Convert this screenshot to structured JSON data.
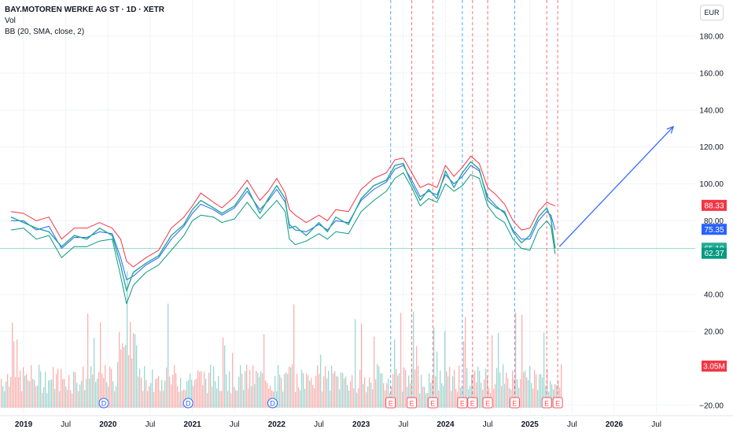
{
  "legend": {
    "title": "BAY.MOTOREN WERKE AG ST · 1D · XETR",
    "line2": "Vol",
    "line3": "BB (20, SMA, close, 2)"
  },
  "currency": "EUR",
  "colors": {
    "upper": "#f23645",
    "lower": "#089981",
    "basis": "#2962ff",
    "price": "#22ab94",
    "volUp": "#26a69a",
    "volDown": "#ef5350",
    "arrow": "#2962ff",
    "earningsLine": "#f7525f",
    "dividendLine": "#2196f3"
  },
  "chart_data": {
    "type": "line",
    "title": "BAY.MOTOREN WERKE AG ST · 1D · XETR",
    "ylim": [
      -20,
      190
    ],
    "y_ticks": [
      -20,
      20,
      40,
      80,
      100,
      120,
      140,
      160,
      180
    ],
    "x_ticks": [
      "2019",
      "Jul",
      "2020",
      "Jul",
      "2021",
      "Jul",
      "2022",
      "Jul",
      "2023",
      "Jul",
      "2024",
      "Jul",
      "2025",
      "Jul",
      "2026",
      "Jul"
    ],
    "x": [
      2018.85,
      2019.0,
      2019.15,
      2019.3,
      2019.45,
      2019.6,
      2019.75,
      2019.9,
      2020.05,
      2020.15,
      2020.22,
      2020.3,
      2020.45,
      2020.6,
      2020.75,
      2020.9,
      2021.0,
      2021.1,
      2021.25,
      2021.35,
      2021.5,
      2021.65,
      2021.8,
      2021.9,
      2022.0,
      2022.1,
      2022.15,
      2022.22,
      2022.35,
      2022.5,
      2022.6,
      2022.7,
      2022.85,
      2023.0,
      2023.15,
      2023.3,
      2023.4,
      2023.5,
      2023.6,
      2023.7,
      2023.8,
      2023.9,
      2024.0,
      2024.1,
      2024.2,
      2024.3,
      2024.4,
      2024.5,
      2024.6,
      2024.7,
      2024.8,
      2024.9,
      2025.0,
      2025.1,
      2025.2,
      2025.25,
      2025.3
    ],
    "series": [
      {
        "name": "upper",
        "values": [
          85,
          84,
          80,
          82,
          70,
          76,
          76,
          79,
          76,
          70,
          58,
          55,
          60,
          64,
          76,
          82,
          88,
          95,
          90,
          87,
          93,
          102,
          91,
          96,
          103,
          95,
          86,
          83,
          79,
          83,
          80,
          86,
          85,
          97,
          103,
          106,
          113,
          114,
          106,
          98,
          100,
          98,
          110,
          104,
          109,
          115,
          111,
          98,
          94,
          89,
          80,
          75,
          76,
          85,
          90,
          89,
          88
        ]
      },
      {
        "name": "basis",
        "values": [
          80,
          80,
          75,
          77,
          65,
          71,
          71,
          74,
          73,
          60,
          48,
          50,
          56,
          60,
          70,
          77,
          84,
          89,
          86,
          83,
          87,
          96,
          86,
          91,
          97,
          90,
          78,
          75,
          74,
          78,
          75,
          80,
          79,
          91,
          97,
          101,
          108,
          110,
          102,
          93,
          96,
          94,
          105,
          100,
          104,
          110,
          107,
          93,
          88,
          84,
          75,
          70,
          70,
          80,
          85,
          83,
          75
        ]
      },
      {
        "name": "lower",
        "values": [
          75,
          76,
          70,
          72,
          60,
          66,
          66,
          69,
          70,
          50,
          35,
          45,
          52,
          56,
          64,
          72,
          80,
          83,
          82,
          79,
          81,
          90,
          81,
          86,
          91,
          85,
          70,
          67,
          69,
          73,
          70,
          74,
          73,
          85,
          91,
          96,
          103,
          106,
          98,
          88,
          92,
          90,
          100,
          96,
          99,
          105,
          103,
          88,
          82,
          79,
          70,
          65,
          64,
          75,
          80,
          77,
          62
        ]
      },
      {
        "name": "price",
        "values": [
          82,
          79,
          76,
          74,
          66,
          72,
          70,
          76,
          72,
          56,
          42,
          52,
          57,
          61,
          72,
          78,
          86,
          91,
          87,
          84,
          88,
          98,
          84,
          92,
          99,
          92,
          76,
          77,
          72,
          79,
          74,
          82,
          78,
          92,
          99,
          102,
          110,
          111,
          100,
          91,
          97,
          92,
          107,
          98,
          106,
          112,
          108,
          91,
          87,
          85,
          74,
          68,
          72,
          82,
          87,
          81,
          65
        ]
      }
    ],
    "projection_arrow": {
      "from": [
        2025.35,
        66
      ],
      "to": [
        2026.7,
        131
      ]
    },
    "horizontal_line": 65.1,
    "price_tags": [
      {
        "value": 88.33,
        "label": "88.33",
        "color": "#f23645"
      },
      {
        "value": 75.35,
        "label": "75.35",
        "color": "#2962ff"
      },
      {
        "value": 65.1,
        "label": "65.10",
        "color": "#22ab94"
      },
      {
        "value": 62.37,
        "label": "62.37",
        "color": "#089981"
      },
      {
        "value": 1.0,
        "label": "3.05M",
        "color": "#f23645"
      }
    ],
    "events": [
      {
        "x": 2019.95,
        "type": "D"
      },
      {
        "x": 2020.95,
        "type": "D"
      },
      {
        "x": 2021.95,
        "type": "D"
      },
      {
        "x": 2023.35,
        "type": "E"
      },
      {
        "x": 2023.6,
        "type": "E"
      },
      {
        "x": 2023.85,
        "type": "E"
      },
      {
        "x": 2024.2,
        "type": "E"
      },
      {
        "x": 2024.32,
        "type": "E"
      },
      {
        "x": 2024.5,
        "type": "E"
      },
      {
        "x": 2024.82,
        "type": "E"
      },
      {
        "x": 2025.2,
        "type": "E"
      },
      {
        "x": 2025.33,
        "type": "E"
      }
    ]
  }
}
